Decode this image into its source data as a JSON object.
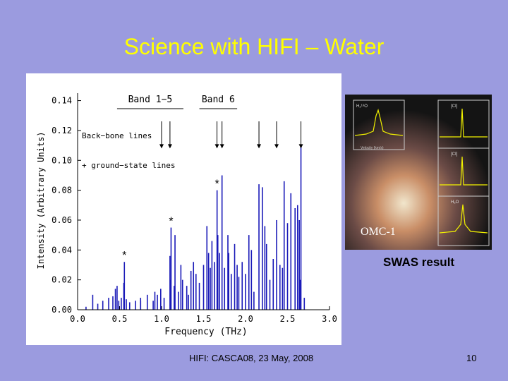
{
  "slide": {
    "title": "Science with HIFI – Water",
    "footer": "HIFI: CASCA08, 23 May, 2008",
    "page_number": "10"
  },
  "swas": {
    "caption": "SWAS result",
    "image_label": "OMC-1",
    "panel_labels": [
      "H₂¹⁸O",
      "[CI]",
      "[CI]",
      "H₂O"
    ],
    "axis_label": "Velocity (km/s)"
  },
  "chart_data": {
    "type": "bar",
    "xlabel": "Frequency (THz)",
    "ylabel": "Intensity (Arbitrary Units)",
    "xlim": [
      0.0,
      3.0
    ],
    "ylim": [
      0.0,
      0.145
    ],
    "xticks": [
      0.0,
      0.5,
      1.0,
      1.5,
      2.0,
      2.5,
      3.0
    ],
    "xtick_labels": [
      "0.0",
      "0.5",
      "1.0",
      "1.5",
      "2.0",
      "2.5",
      "3.0"
    ],
    "yticks": [
      0.0,
      0.02,
      0.04,
      0.06,
      0.08,
      0.1,
      0.12,
      0.14
    ],
    "ytick_labels": [
      "0.00",
      "0.02",
      "0.04",
      "0.06",
      "0.08",
      "0.10",
      "0.12",
      "0.14"
    ],
    "series": [
      {
        "values": [
          {
            "x": 0.1,
            "y": 0.002
          },
          {
            "x": 0.18,
            "y": 0.01
          },
          {
            "x": 0.24,
            "y": 0.004
          },
          {
            "x": 0.3,
            "y": 0.006
          },
          {
            "x": 0.37,
            "y": 0.008
          },
          {
            "x": 0.42,
            "y": 0.009
          },
          {
            "x": 0.45,
            "y": 0.014
          },
          {
            "x": 0.47,
            "y": 0.016
          },
          {
            "x": 0.49,
            "y": 0.006
          },
          {
            "x": 0.52,
            "y": 0.008
          },
          {
            "x": 0.55,
            "y": 0.018
          },
          {
            "x": 0.557,
            "y": 0.032
          },
          {
            "x": 0.58,
            "y": 0.007
          },
          {
            "x": 0.62,
            "y": 0.005
          },
          {
            "x": 0.69,
            "y": 0.006
          },
          {
            "x": 0.75,
            "y": 0.008
          },
          {
            "x": 0.75,
            "y": 0.006
          },
          {
            "x": 0.83,
            "y": 0.01
          },
          {
            "x": 0.9,
            "y": 0.006
          },
          {
            "x": 0.92,
            "y": 0.012
          },
          {
            "x": 0.95,
            "y": 0.01
          },
          {
            "x": 0.99,
            "y": 0.014
          },
          {
            "x": 1.03,
            "y": 0.008
          },
          {
            "x": 1.1,
            "y": 0.036
          },
          {
            "x": 1.11,
            "y": 0.02
          },
          {
            "x": 1.113,
            "y": 0.055
          },
          {
            "x": 1.15,
            "y": 0.016
          },
          {
            "x": 1.16,
            "y": 0.05
          },
          {
            "x": 1.2,
            "y": 0.012
          },
          {
            "x": 1.23,
            "y": 0.03
          },
          {
            "x": 1.25,
            "y": 0.02
          },
          {
            "x": 1.3,
            "y": 0.016
          },
          {
            "x": 1.32,
            "y": 0.01
          },
          {
            "x": 1.35,
            "y": 0.026
          },
          {
            "x": 1.38,
            "y": 0.032
          },
          {
            "x": 1.41,
            "y": 0.024
          },
          {
            "x": 1.45,
            "y": 0.018
          },
          {
            "x": 1.5,
            "y": 0.03
          },
          {
            "x": 1.54,
            "y": 0.056
          },
          {
            "x": 1.56,
            "y": 0.038
          },
          {
            "x": 1.58,
            "y": 0.028
          },
          {
            "x": 1.6,
            "y": 0.046
          },
          {
            "x": 1.63,
            "y": 0.032
          },
          {
            "x": 1.661,
            "y": 0.08
          },
          {
            "x": 1.67,
            "y": 0.05
          },
          {
            "x": 1.69,
            "y": 0.038
          },
          {
            "x": 1.72,
            "y": 0.09
          },
          {
            "x": 1.75,
            "y": 0.028
          },
          {
            "x": 1.79,
            "y": 0.05
          },
          {
            "x": 1.8,
            "y": 0.038
          },
          {
            "x": 1.83,
            "y": 0.024
          },
          {
            "x": 1.87,
            "y": 0.044
          },
          {
            "x": 1.9,
            "y": 0.03
          },
          {
            "x": 1.92,
            "y": 0.022
          },
          {
            "x": 1.96,
            "y": 0.032
          },
          {
            "x": 2.0,
            "y": 0.024
          },
          {
            "x": 2.04,
            "y": 0.05
          },
          {
            "x": 2.07,
            "y": 0.04
          },
          {
            "x": 2.1,
            "y": 0.012
          },
          {
            "x": 2.16,
            "y": 0.084
          },
          {
            "x": 2.2,
            "y": 0.082
          },
          {
            "x": 2.23,
            "y": 0.056
          },
          {
            "x": 2.25,
            "y": 0.044
          },
          {
            "x": 2.29,
            "y": 0.02
          },
          {
            "x": 2.33,
            "y": 0.034
          },
          {
            "x": 2.37,
            "y": 0.06
          },
          {
            "x": 2.41,
            "y": 0.03
          },
          {
            "x": 2.44,
            "y": 0.028
          },
          {
            "x": 2.46,
            "y": 0.086
          },
          {
            "x": 2.5,
            "y": 0.058
          },
          {
            "x": 2.54,
            "y": 0.078
          },
          {
            "x": 2.59,
            "y": 0.068
          },
          {
            "x": 2.62,
            "y": 0.07
          },
          {
            "x": 2.64,
            "y": 0.06
          },
          {
            "x": 2.65,
            "y": 0.02
          },
          {
            "x": 2.66,
            "y": 0.11
          },
          {
            "x": 2.7,
            "y": 0.008
          }
        ]
      }
    ],
    "annotations": {
      "bands": [
        {
          "label": "Band 1−5",
          "x_from": 0.47,
          "x_to": 1.26
        },
        {
          "label": "Band 6",
          "x_from": 1.45,
          "x_to": 1.9
        }
      ],
      "backbone_label": "Back−bone lines",
      "ground_state_label": "+ ground−state lines",
      "arrow_x": [
        1.0,
        1.1,
        1.66,
        1.72,
        2.16,
        2.37,
        2.66
      ],
      "arrow_tip_y": [
        0.108,
        0.108,
        0.108,
        0.108,
        0.108,
        0.108,
        0.108
      ],
      "star_markers": [
        {
          "x": 0.557,
          "y": 0.032
        },
        {
          "x": 1.113,
          "y": 0.055
        },
        {
          "x": 1.661,
          "y": 0.08
        }
      ],
      "star_symbol": "*"
    }
  }
}
